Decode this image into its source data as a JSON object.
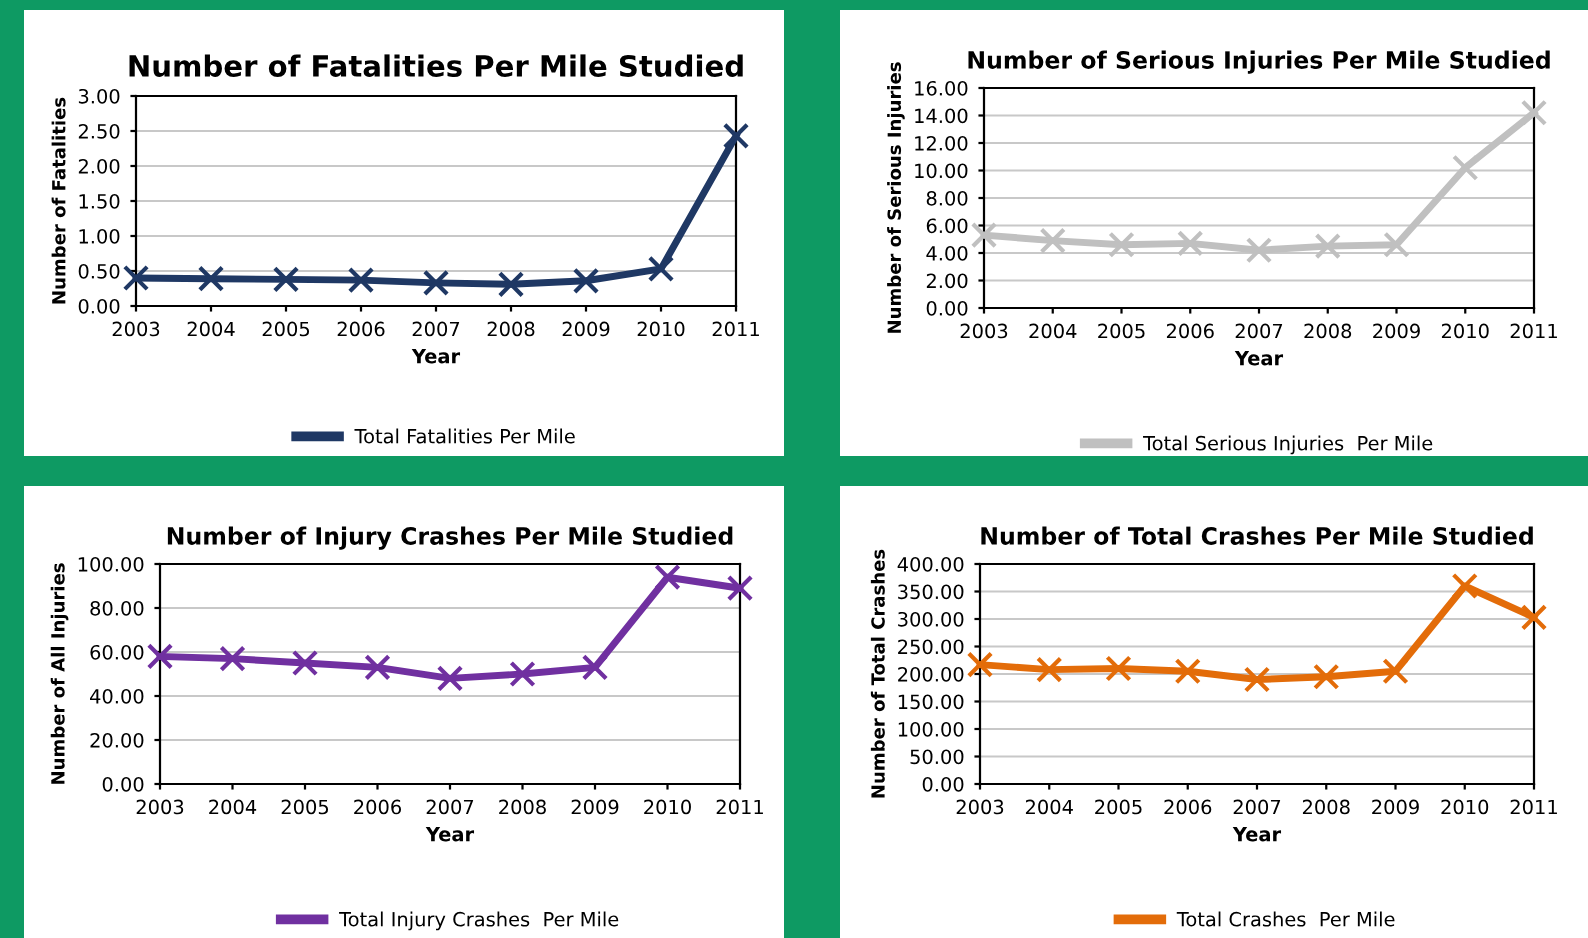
{
  "chart_data": [
    {
      "type": "line",
      "title": "Number of Fatalities Per Mile Studied",
      "xlabel": "Year",
      "ylabel": "Number of Fatalities",
      "categories": [
        "2003",
        "2004",
        "2005",
        "2006",
        "2007",
        "2008",
        "2009",
        "2010",
        "2011"
      ],
      "series": [
        {
          "name": "Total Fatalities Per Mile",
          "color": "#1f3864",
          "values": [
            0.4,
            0.39,
            0.38,
            0.37,
            0.33,
            0.31,
            0.36,
            0.53,
            2.43
          ]
        }
      ],
      "ylim": [
        0,
        3
      ],
      "yticks": [
        {
          "value": 0,
          "label": "0.00"
        },
        {
          "value": 0.5,
          "label": "0.50"
        },
        {
          "value": 1,
          "label": "1.00"
        },
        {
          "value": 1.5,
          "label": "1.50"
        },
        {
          "value": 2,
          "label": "2.00"
        },
        {
          "value": 2.5,
          "label": "2.50"
        },
        {
          "value": 3,
          "label": "3.00"
        }
      ],
      "grid": "y",
      "legend": "bottom",
      "marker": "cross",
      "line_style": "solid"
    },
    {
      "type": "line",
      "title": "Number of Serious Injuries Per Mile Studied",
      "xlabel": "Year",
      "ylabel": "Number of Serious Injuries",
      "categories": [
        "2003",
        "2004",
        "2005",
        "2006",
        "2007",
        "2008",
        "2009",
        "2010",
        "2011"
      ],
      "series": [
        {
          "name": "Total Serious Injuries  Per Mile",
          "color": "#c0c0c0",
          "values": [
            5.3,
            4.9,
            4.6,
            4.7,
            4.2,
            4.5,
            4.6,
            10.2,
            14.2
          ]
        }
      ],
      "ylim": [
        0,
        16
      ],
      "yticks": [
        {
          "value": 0,
          "label": "0.00"
        },
        {
          "value": 2,
          "label": "2.00"
        },
        {
          "value": 4,
          "label": "4.00"
        },
        {
          "value": 6,
          "label": "6.00"
        },
        {
          "value": 8,
          "label": "8.00"
        },
        {
          "value": 10,
          "label": "10.00"
        },
        {
          "value": 12,
          "label": "12.00"
        },
        {
          "value": 14,
          "label": "14.00"
        },
        {
          "value": 16,
          "label": "16.00"
        }
      ],
      "grid": "y",
      "legend": "bottom",
      "marker": "cross",
      "line_style": "solid"
    },
    {
      "type": "line",
      "title": "Number of Injury Crashes Per Mile Studied",
      "xlabel": "Year",
      "ylabel": "Number of All Injuries",
      "categories": [
        "2003",
        "2004",
        "2005",
        "2006",
        "2007",
        "2008",
        "2009",
        "2010",
        "2011"
      ],
      "series": [
        {
          "name": "Total Injury Crashes  Per Mile",
          "color": "#7030a0",
          "values": [
            58,
            57,
            55,
            53,
            48,
            50,
            53,
            94,
            89
          ]
        }
      ],
      "ylim": [
        0,
        100
      ],
      "yticks": [
        {
          "value": 0,
          "label": "0.00"
        },
        {
          "value": 20,
          "label": "20.00"
        },
        {
          "value": 40,
          "label": "40.00"
        },
        {
          "value": 60,
          "label": "60.00"
        },
        {
          "value": 80,
          "label": "80.00"
        },
        {
          "value": 100,
          "label": "100.00"
        }
      ],
      "grid": "y",
      "legend": "bottom",
      "marker": "cross",
      "line_style": "solid"
    },
    {
      "type": "line",
      "title": "Number of Total Crashes Per Mile Studied",
      "xlabel": "Year",
      "ylabel": "Number of Total Crashes",
      "categories": [
        "2003",
        "2004",
        "2005",
        "2006",
        "2007",
        "2008",
        "2009",
        "2010",
        "2011"
      ],
      "series": [
        {
          "name": "Total Crashes  Per Mile",
          "color": "#e36c09",
          "values": [
            217,
            208,
            210,
            205,
            190,
            195,
            205,
            360,
            303
          ]
        }
      ],
      "ylim": [
        0,
        400
      ],
      "yticks": [
        {
          "value": 0,
          "label": "0.00"
        },
        {
          "value": 50,
          "label": "50.00"
        },
        {
          "value": 100,
          "label": "100.00"
        },
        {
          "value": 150,
          "label": "150.00"
        },
        {
          "value": 200,
          "label": "200.00"
        },
        {
          "value": 250,
          "label": "250.00"
        },
        {
          "value": 300,
          "label": "300.00"
        },
        {
          "value": 350,
          "label": "350.00"
        },
        {
          "value": 400,
          "label": "400.00"
        }
      ],
      "grid": "y",
      "legend": "bottom",
      "marker": "cross",
      "line_style": "solid"
    }
  ]
}
